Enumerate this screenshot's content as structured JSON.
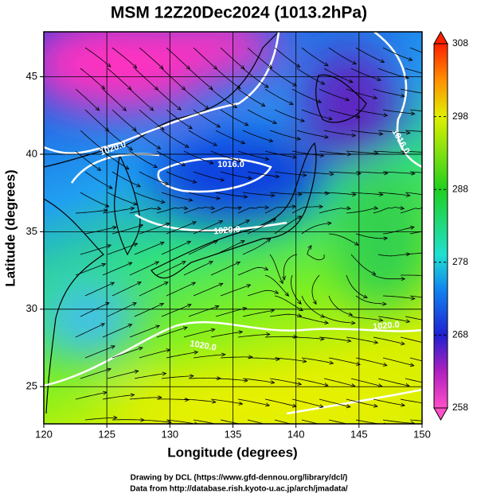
{
  "title": "MSM 12Z20Dec2024 (1013.2hPa)",
  "map": {
    "xlabel": "Longitude (degrees)",
    "ylabel": "Latitude  (degrees)",
    "xlim": [
      120,
      150
    ],
    "ylim": [
      22.6,
      47.9
    ],
    "xticks": [
      120,
      125,
      130,
      135,
      140,
      145,
      150
    ],
    "yticks": [
      25,
      30,
      35,
      40,
      45
    ],
    "grid": true,
    "contour_labels": [
      "1020.0",
      "1016.0",
      "1020.0",
      "1020.0",
      "1020.0",
      "1016.0"
    ]
  },
  "colorbar": {
    "range": [
      258,
      308
    ],
    "ticks": [
      258,
      268,
      278,
      288,
      298,
      308
    ]
  },
  "credits": [
    "Drawing by DCL (https://www.gfd-dennou.org/library/dcl/)",
    "Data from http://database.rish.kyoto-u.ac.jp/arch/jmadata/"
  ]
}
